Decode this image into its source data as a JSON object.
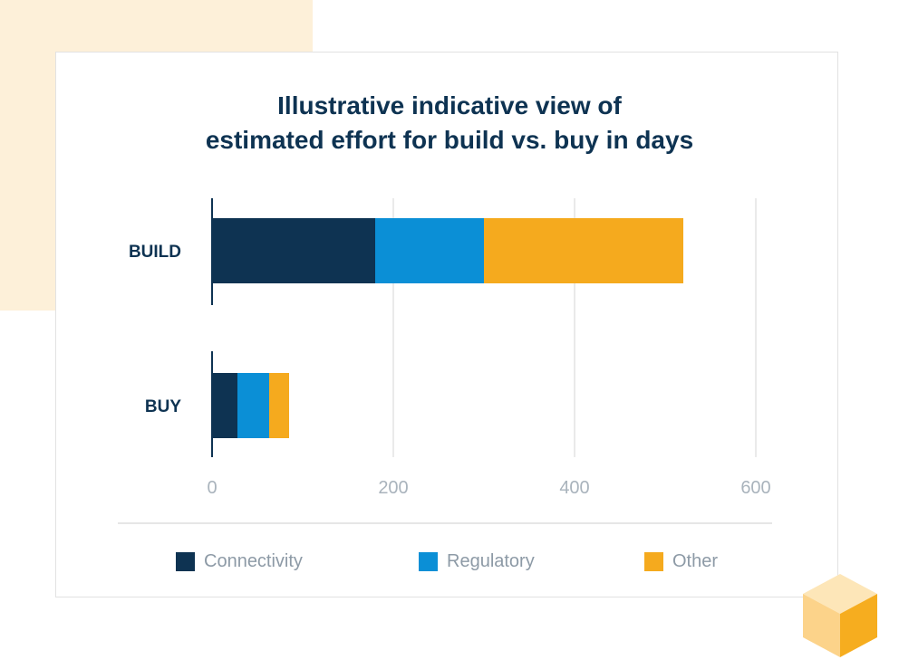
{
  "chart_data": {
    "type": "bar",
    "orientation": "horizontal",
    "stacked": true,
    "title_lines": [
      "Illustrative indicative view of",
      "estimated effort for build vs. buy in days"
    ],
    "categories": [
      "BUILD",
      "BUY"
    ],
    "series": [
      {
        "name": "Connectivity",
        "color": "#0e3352",
        "values": [
          180,
          28
        ]
      },
      {
        "name": "Regulatory",
        "color": "#0b8fd6",
        "values": [
          120,
          35
        ]
      },
      {
        "name": "Other",
        "color": "#f5aa1e",
        "values": [
          220,
          22
        ]
      }
    ],
    "xlim": [
      0,
      600
    ],
    "xticks": [
      0,
      200,
      400,
      600
    ],
    "xtick_labels": [
      "0",
      "200",
      "400",
      "600"
    ],
    "grid": true,
    "legend_position": "bottom"
  }
}
